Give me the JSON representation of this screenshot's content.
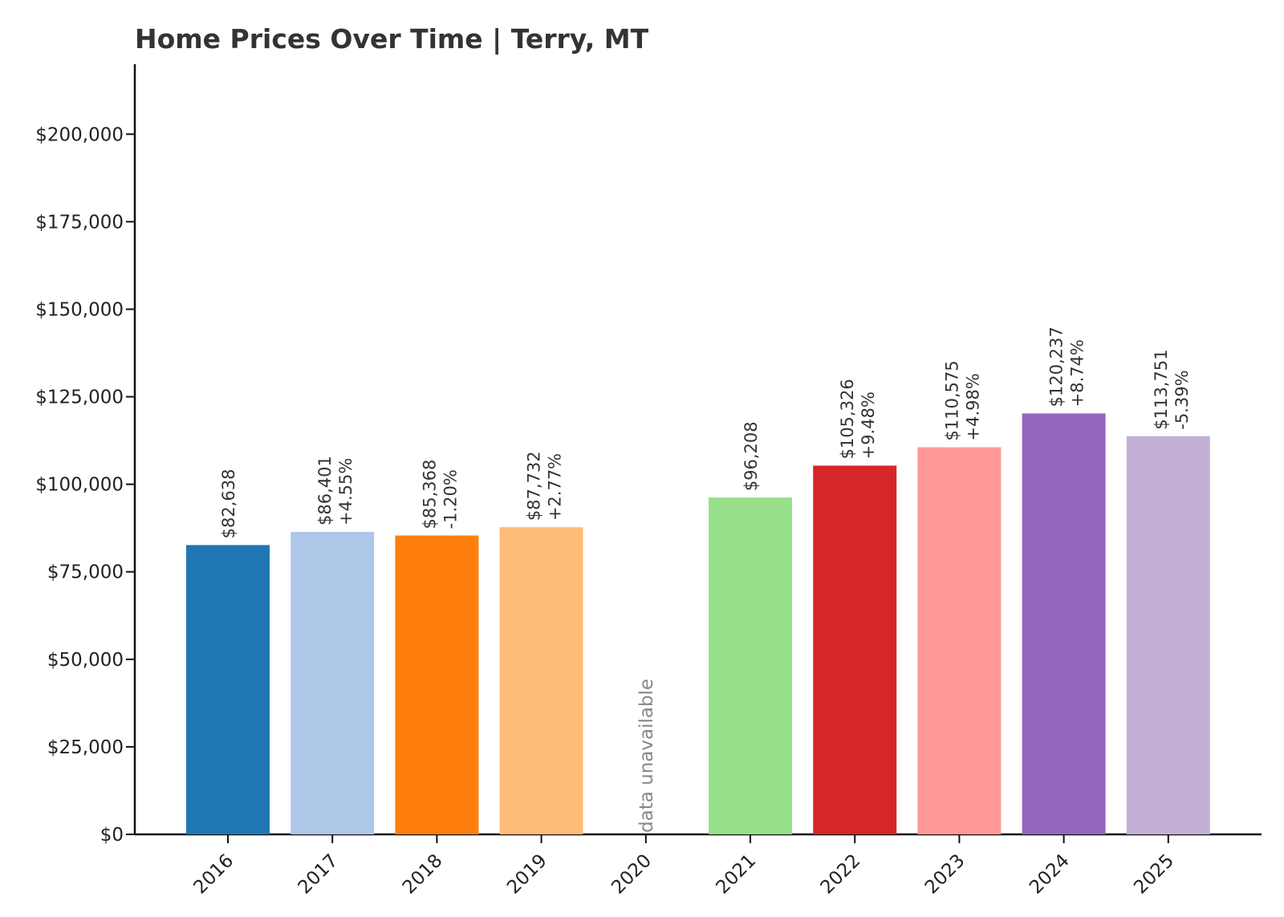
{
  "chart_data": {
    "type": "bar",
    "title": "Home Prices Over Time | Terry, MT",
    "xlabel": "",
    "ylabel": "",
    "ylim": [
      0,
      220000
    ],
    "yticks": [
      0,
      25000,
      50000,
      75000,
      100000,
      125000,
      150000,
      175000,
      200000
    ],
    "ytick_labels": [
      "$0",
      "$25,000",
      "$50,000",
      "$75,000",
      "$100,000",
      "$125,000",
      "$150,000",
      "$175,000",
      "$200,000"
    ],
    "grid": false,
    "categories": [
      "2016",
      "2017",
      "2018",
      "2019",
      "2020",
      "2021",
      "2022",
      "2023",
      "2024",
      "2025"
    ],
    "values": [
      82638,
      86401,
      85368,
      87732,
      null,
      96208,
      105326,
      110575,
      120237,
      113751
    ],
    "value_labels": [
      "$82,638",
      "$86,401",
      "$85,368",
      "$87,732",
      "",
      "$96,208",
      "$105,326",
      "$110,575",
      "$120,237",
      "$113,751"
    ],
    "change_labels": [
      "",
      "+4.55%",
      "-1.20%",
      "+2.77%",
      "",
      "",
      "+9.48%",
      "+4.98%",
      "+8.74%",
      "-5.39%"
    ],
    "missing_label": "data unavailable",
    "colors": [
      "#1f77b4",
      "#aec7e8",
      "#ff7f0e",
      "#ffbb78",
      "#2ca02c",
      "#98df8a",
      "#d62728",
      "#ff9896",
      "#9467bd",
      "#c5b0d5"
    ]
  }
}
